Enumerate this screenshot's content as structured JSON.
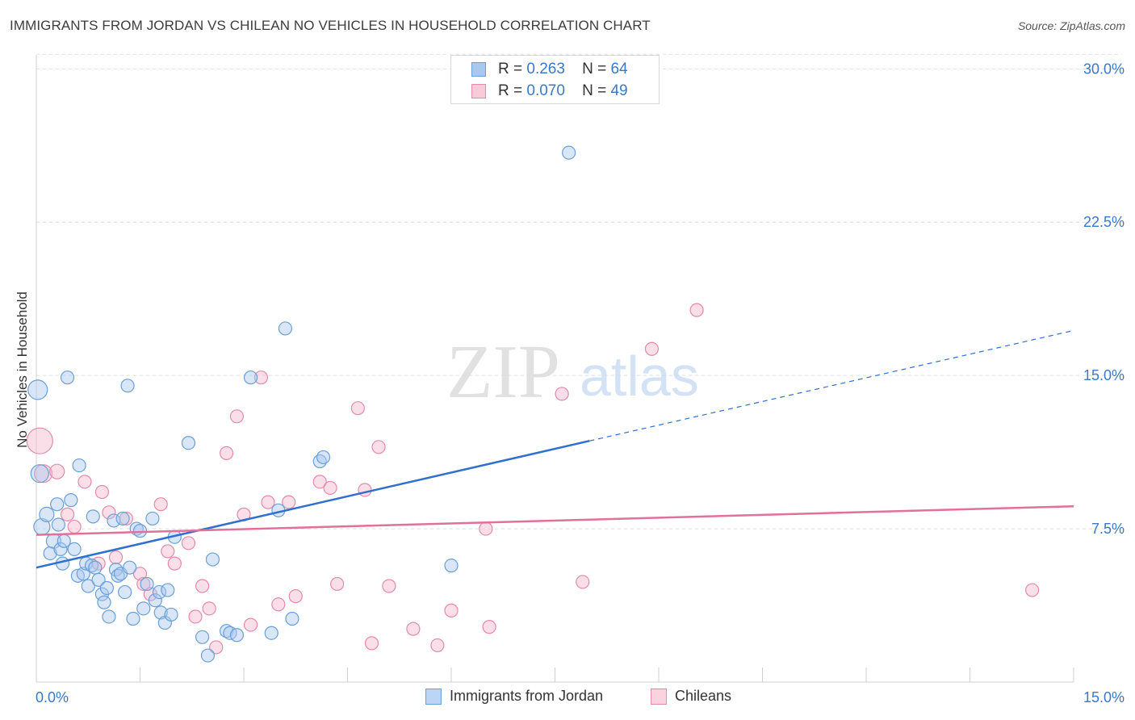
{
  "title": "IMMIGRANTS FROM JORDAN VS CHILEAN NO VEHICLES IN HOUSEHOLD CORRELATION CHART",
  "source": "Source: ZipAtlas.com",
  "watermark": {
    "zip": "ZIP",
    "atlas": "atlas"
  },
  "colors": {
    "blue": "#a9c8f0",
    "blue_edge": "#6a9fd8",
    "blue_line": "#2f6fce",
    "pink": "#f6b8cb",
    "pink_edge": "#e48aa8",
    "pink_line": "#e0719a",
    "axis_text": "#3a78c9"
  },
  "stats": [
    {
      "r_label": "R =",
      "r": "0.263",
      "n_label": "N =",
      "n": "64"
    },
    {
      "r_label": "R =",
      "r": "0.070",
      "n_label": "N =",
      "n": "49"
    }
  ],
  "legend": [
    {
      "label": "Immigrants from Jordan"
    },
    {
      "label": "Chileans"
    }
  ],
  "chart_data": {
    "type": "scatter",
    "xlabel": "",
    "ylabel": "No Vehicles in Household",
    "xlim": [
      0,
      15
    ],
    "ylim": [
      0,
      31
    ],
    "x_tick_labels": [
      {
        "value": 0,
        "label": "0.0%"
      },
      {
        "value": 15,
        "label": "15.0%"
      }
    ],
    "y_tick_labels": [
      {
        "value": 7.5,
        "label": "7.5%"
      },
      {
        "value": 15,
        "label": "15.0%"
      },
      {
        "value": 22.5,
        "label": "22.5%"
      },
      {
        "value": 30,
        "label": "30.0%"
      }
    ],
    "grid": true,
    "series": [
      {
        "name": "Immigrants from Jordan",
        "trend": {
          "x0": 0,
          "y0": 5.6,
          "x1": 8.0,
          "y1": 11.8,
          "dashed_to_x": 15,
          "dashed_to_y": 17.2
        },
        "points": [
          [
            0.02,
            14.3,
            12
          ],
          [
            0.05,
            10.2,
            11
          ],
          [
            0.08,
            7.6,
            10
          ],
          [
            0.15,
            8.2,
            9
          ],
          [
            0.2,
            6.3,
            8
          ],
          [
            0.25,
            6.9,
            9
          ],
          [
            0.3,
            8.7,
            8
          ],
          [
            0.32,
            7.7,
            8
          ],
          [
            0.35,
            6.5,
            8
          ],
          [
            0.38,
            5.8,
            8
          ],
          [
            0.4,
            6.9,
            8
          ],
          [
            0.45,
            14.9,
            8
          ],
          [
            0.5,
            8.9,
            8
          ],
          [
            0.55,
            6.5,
            8
          ],
          [
            0.6,
            5.2,
            8
          ],
          [
            0.62,
            10.6,
            8
          ],
          [
            0.68,
            5.3,
            8
          ],
          [
            0.72,
            5.8,
            8
          ],
          [
            0.75,
            4.7,
            8
          ],
          [
            0.8,
            5.7,
            8
          ],
          [
            0.82,
            8.1,
            8
          ],
          [
            0.85,
            5.6,
            8
          ],
          [
            0.9,
            5.0,
            8
          ],
          [
            0.95,
            4.3,
            8
          ],
          [
            0.98,
            3.9,
            8
          ],
          [
            1.02,
            4.6,
            8
          ],
          [
            1.05,
            3.2,
            8
          ],
          [
            1.12,
            7.9,
            8
          ],
          [
            1.15,
            5.5,
            8
          ],
          [
            1.18,
            5.2,
            8
          ],
          [
            1.22,
            5.3,
            8
          ],
          [
            1.25,
            8.0,
            8
          ],
          [
            1.28,
            4.4,
            8
          ],
          [
            1.32,
            14.5,
            8
          ],
          [
            1.35,
            5.6,
            8
          ],
          [
            1.4,
            3.1,
            8
          ],
          [
            1.45,
            7.5,
            8
          ],
          [
            1.5,
            7.4,
            8
          ],
          [
            1.55,
            3.6,
            8
          ],
          [
            1.6,
            4.8,
            8
          ],
          [
            1.68,
            8.0,
            8
          ],
          [
            1.72,
            4.0,
            8
          ],
          [
            1.78,
            4.4,
            8
          ],
          [
            1.8,
            3.4,
            8
          ],
          [
            1.86,
            2.9,
            8
          ],
          [
            1.9,
            4.5,
            8
          ],
          [
            1.95,
            3.3,
            8
          ],
          [
            2.0,
            7.1,
            8
          ],
          [
            2.2,
            11.7,
            8
          ],
          [
            2.4,
            2.2,
            8
          ],
          [
            2.48,
            1.3,
            8
          ],
          [
            2.55,
            6.0,
            8
          ],
          [
            2.75,
            2.5,
            8
          ],
          [
            2.8,
            2.4,
            8
          ],
          [
            2.9,
            2.3,
            8
          ],
          [
            3.1,
            14.9,
            8
          ],
          [
            3.4,
            2.4,
            8
          ],
          [
            3.5,
            8.4,
            8
          ],
          [
            3.6,
            17.3,
            8
          ],
          [
            3.7,
            3.1,
            8
          ],
          [
            4.1,
            10.8,
            8
          ],
          [
            4.15,
            11.0,
            8
          ],
          [
            6.0,
            5.7,
            8
          ],
          [
            7.7,
            25.9,
            8
          ]
        ]
      },
      {
        "name": "Chileans",
        "trend": {
          "x0": 0,
          "y0": 7.2,
          "x1": 15,
          "y1": 8.6
        },
        "points": [
          [
            0.05,
            11.8,
            16
          ],
          [
            0.1,
            10.2,
            11
          ],
          [
            0.3,
            10.3,
            9
          ],
          [
            0.45,
            8.2,
            8
          ],
          [
            0.55,
            7.6,
            8
          ],
          [
            0.7,
            9.8,
            8
          ],
          [
            0.9,
            5.8,
            8
          ],
          [
            0.95,
            9.3,
            8
          ],
          [
            1.05,
            8.3,
            8
          ],
          [
            1.15,
            6.1,
            8
          ],
          [
            1.3,
            8.0,
            8
          ],
          [
            1.5,
            5.3,
            8
          ],
          [
            1.55,
            4.8,
            8
          ],
          [
            1.65,
            4.3,
            8
          ],
          [
            1.8,
            8.7,
            8
          ],
          [
            1.9,
            6.4,
            8
          ],
          [
            2.0,
            5.8,
            8
          ],
          [
            2.2,
            6.8,
            8
          ],
          [
            2.3,
            3.2,
            8
          ],
          [
            2.4,
            4.7,
            8
          ],
          [
            2.5,
            3.6,
            8
          ],
          [
            2.6,
            1.7,
            8
          ],
          [
            2.75,
            11.2,
            8
          ],
          [
            2.9,
            13.0,
            8
          ],
          [
            3.0,
            8.2,
            8
          ],
          [
            3.1,
            2.8,
            8
          ],
          [
            3.25,
            14.9,
            8
          ],
          [
            3.35,
            8.8,
            8
          ],
          [
            3.5,
            3.8,
            8
          ],
          [
            3.65,
            8.8,
            8
          ],
          [
            3.75,
            4.2,
            8
          ],
          [
            4.1,
            9.8,
            8
          ],
          [
            4.25,
            9.5,
            8
          ],
          [
            4.35,
            4.8,
            8
          ],
          [
            4.65,
            13.4,
            8
          ],
          [
            4.75,
            9.4,
            8
          ],
          [
            4.85,
            1.9,
            8
          ],
          [
            4.95,
            11.5,
            8
          ],
          [
            5.1,
            4.7,
            8
          ],
          [
            5.45,
            2.6,
            8
          ],
          [
            5.8,
            1.8,
            8
          ],
          [
            6.0,
            3.5,
            8
          ],
          [
            6.5,
            7.5,
            8
          ],
          [
            6.55,
            2.7,
            8
          ],
          [
            7.6,
            14.1,
            8
          ],
          [
            7.9,
            4.9,
            8
          ],
          [
            8.9,
            16.3,
            8
          ],
          [
            9.55,
            18.2,
            8
          ],
          [
            14.4,
            4.5,
            8
          ]
        ]
      }
    ]
  }
}
